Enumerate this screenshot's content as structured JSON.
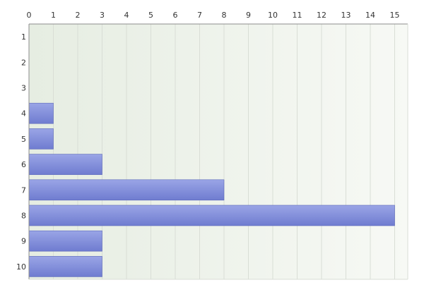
{
  "chart_data": {
    "type": "bar",
    "orientation": "horizontal",
    "categories": [
      "1",
      "2",
      "3",
      "4",
      "5",
      "6",
      "7",
      "8",
      "9",
      "10"
    ],
    "values": [
      0,
      0,
      0,
      1,
      1,
      3,
      8,
      15,
      3,
      3
    ],
    "xlim": [
      0,
      15
    ],
    "x_ticks": [
      "0",
      "1",
      "2",
      "3",
      "4",
      "5",
      "6",
      "7",
      "8",
      "9",
      "10",
      "11",
      "12",
      "13",
      "14",
      "15"
    ],
    "x_axis_position": "top",
    "grid": true,
    "legend": "none",
    "title": "",
    "xlabel": "",
    "ylabel": ""
  },
  "colors": {
    "bar_light": "#9aa5e6",
    "bar_dark": "#6f7cd0",
    "bar_stroke": "#5a67b8",
    "plot_bg_left": "#e6ede2",
    "plot_bg_right": "#f7f9f5",
    "grid": "#d9ded6",
    "axis": "#8c8c8c",
    "text": "#333333"
  }
}
